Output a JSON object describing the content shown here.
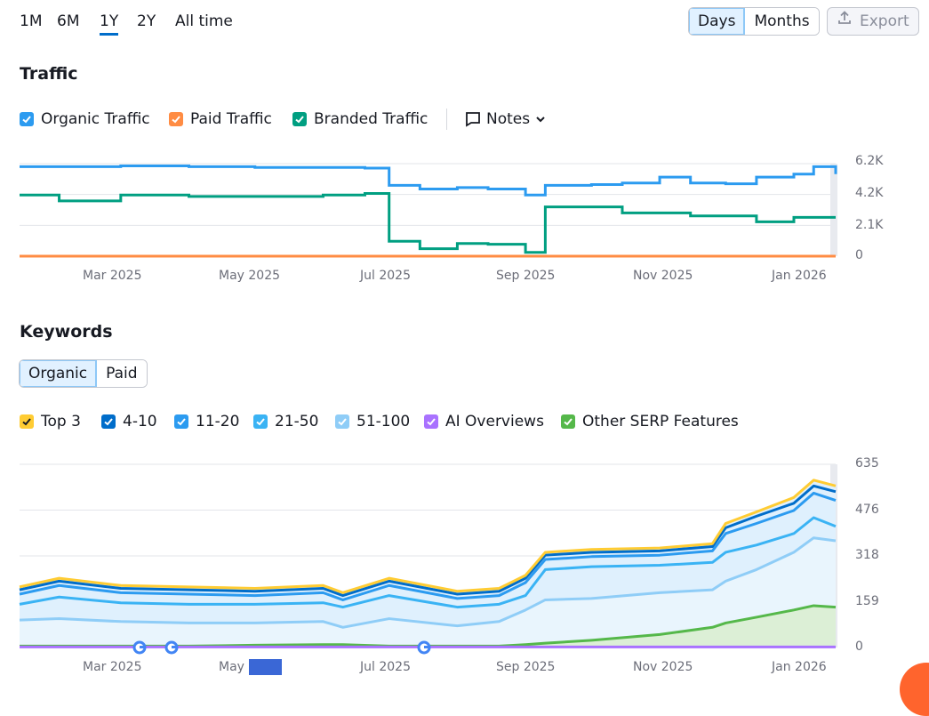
{
  "periods": [
    "1M",
    "6M",
    "1Y",
    "2Y",
    "All time"
  ],
  "active_period": "1Y",
  "granularity": {
    "days": "Days",
    "months": "Months"
  },
  "export_label": "Export",
  "traffic": {
    "title": "Traffic",
    "legend": [
      {
        "label": "Organic Traffic",
        "color": "#2c9bf0"
      },
      {
        "label": "Paid Traffic",
        "color": "#ff8c43"
      },
      {
        "label": "Branded Traffic",
        "color": "#009f81"
      }
    ],
    "notes_label": "Notes",
    "y_ticks": [
      "6.2K",
      "4.2K",
      "2.1K",
      "0"
    ],
    "x_ticks": [
      "Mar 2025",
      "May 2025",
      "Jul 2025",
      "Sep 2025",
      "Nov 2025",
      "Jan 2026"
    ]
  },
  "keywords": {
    "title": "Keywords",
    "tabs": {
      "organic": "Organic",
      "paid": "Paid"
    },
    "legend": [
      {
        "label": "Top 3",
        "color": "#ffcc33"
      },
      {
        "label": "4-10",
        "color": "#006dca"
      },
      {
        "label": "11-20",
        "color": "#2c9bf0"
      },
      {
        "label": "21-50",
        "color": "#3ab3f4"
      },
      {
        "label": "51-100",
        "color": "#8fcdf7"
      },
      {
        "label": "AI Overviews",
        "color": "#a972ff"
      },
      {
        "label": "Other SERP Features",
        "color": "#55b84a"
      }
    ],
    "y_ticks": [
      "635",
      "476",
      "318",
      "159",
      "0"
    ],
    "x_ticks": [
      "Mar 2025",
      "May",
      "Jul 2025",
      "Sep 2025",
      "Nov 2025",
      "Jan 2026"
    ]
  },
  "chart_data": [
    {
      "type": "line",
      "title": "Traffic",
      "x": [
        "2025-01-14",
        "2025-02-01",
        "2025-03-01",
        "2025-04-01",
        "2025-05-01",
        "2025-06-01",
        "2025-06-20",
        "2025-07-01",
        "2025-07-15",
        "2025-08-01",
        "2025-08-15",
        "2025-09-01",
        "2025-09-10",
        "2025-10-01",
        "2025-10-15",
        "2025-11-01",
        "2025-11-15",
        "2025-12-01",
        "2025-12-15",
        "2026-01-01",
        "2026-01-10",
        "2026-01-20"
      ],
      "ylim": [
        0,
        6200
      ],
      "series": [
        {
          "name": "Organic Traffic",
          "values": [
            6000,
            6000,
            6050,
            6000,
            5950,
            5950,
            5900,
            4750,
            4500,
            4600,
            4500,
            4100,
            4750,
            4800,
            4900,
            5300,
            4900,
            4850,
            5300,
            5500,
            6000,
            5500
          ]
        },
        {
          "name": "Paid Traffic",
          "values": [
            0,
            0,
            0,
            0,
            0,
            0,
            0,
            0,
            0,
            0,
            0,
            0,
            0,
            0,
            0,
            0,
            0,
            0,
            0,
            0,
            0,
            0
          ]
        },
        {
          "name": "Branded Traffic",
          "values": [
            4100,
            3700,
            4100,
            4000,
            4000,
            4100,
            4200,
            1000,
            500,
            850,
            800,
            250,
            3300,
            3300,
            2900,
            2900,
            2700,
            2700,
            2300,
            2600,
            2600,
            2600
          ]
        }
      ]
    },
    {
      "type": "area",
      "title": "Keywords",
      "x": [
        "2025-01-14",
        "2025-02-01",
        "2025-03-01",
        "2025-04-01",
        "2025-05-01",
        "2025-06-01",
        "2025-06-10",
        "2025-07-01",
        "2025-08-01",
        "2025-08-20",
        "2025-09-01",
        "2025-09-10",
        "2025-10-01",
        "2025-11-01",
        "2025-11-25",
        "2025-12-01",
        "2025-12-15",
        "2026-01-01",
        "2026-01-10",
        "2026-01-20"
      ],
      "ylim": [
        0,
        635
      ],
      "series": [
        {
          "name": "Top 3",
          "values": [
            210,
            240,
            215,
            210,
            205,
            215,
            190,
            240,
            195,
            205,
            250,
            330,
            340,
            345,
            360,
            430,
            470,
            520,
            580,
            560
          ]
        },
        {
          "name": "4-10",
          "values": [
            200,
            230,
            205,
            200,
            195,
            205,
            180,
            230,
            185,
            195,
            240,
            320,
            330,
            335,
            350,
            415,
            455,
            500,
            560,
            540
          ]
        },
        {
          "name": "11-20",
          "values": [
            185,
            215,
            190,
            185,
            180,
            190,
            165,
            215,
            170,
            180,
            225,
            305,
            315,
            320,
            335,
            395,
            430,
            475,
            535,
            510
          ]
        },
        {
          "name": "21-50",
          "values": [
            150,
            175,
            155,
            150,
            150,
            155,
            140,
            180,
            140,
            150,
            180,
            270,
            280,
            285,
            295,
            330,
            355,
            395,
            450,
            420
          ]
        },
        {
          "name": "51-100",
          "values": [
            95,
            100,
            90,
            85,
            85,
            90,
            70,
            100,
            75,
            90,
            130,
            165,
            170,
            190,
            200,
            230,
            270,
            330,
            380,
            370
          ]
        },
        {
          "name": "AI Overviews",
          "values": [
            2,
            2,
            2,
            2,
            2,
            2,
            2,
            2,
            2,
            2,
            2,
            2,
            2,
            2,
            2,
            2,
            2,
            2,
            2,
            2
          ]
        },
        {
          "name": "Other SERP Features",
          "values": [
            5,
            5,
            5,
            5,
            8,
            10,
            10,
            5,
            5,
            5,
            10,
            15,
            25,
            45,
            70,
            85,
            105,
            130,
            145,
            140
          ]
        }
      ]
    }
  ]
}
